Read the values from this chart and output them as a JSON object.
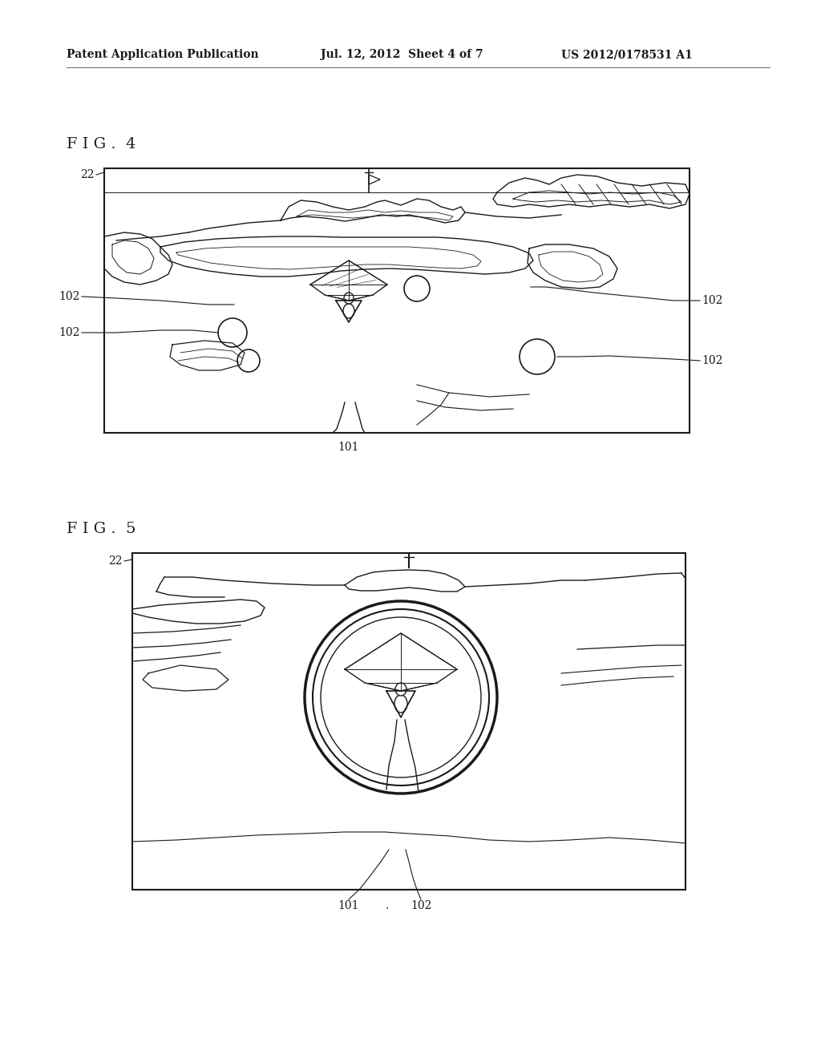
{
  "bg_color": "#ffffff",
  "header_line1": "Patent Application Publication",
  "header_line2": "Jul. 12, 2012  Sheet 4 of 7",
  "header_line3": "US 2012/0178531 A1",
  "fig4_label": "F I G .  4",
  "fig5_label": "F I G .  5",
  "lc": "#1a1a1a",
  "label_fs": 10,
  "header_fs": 10
}
